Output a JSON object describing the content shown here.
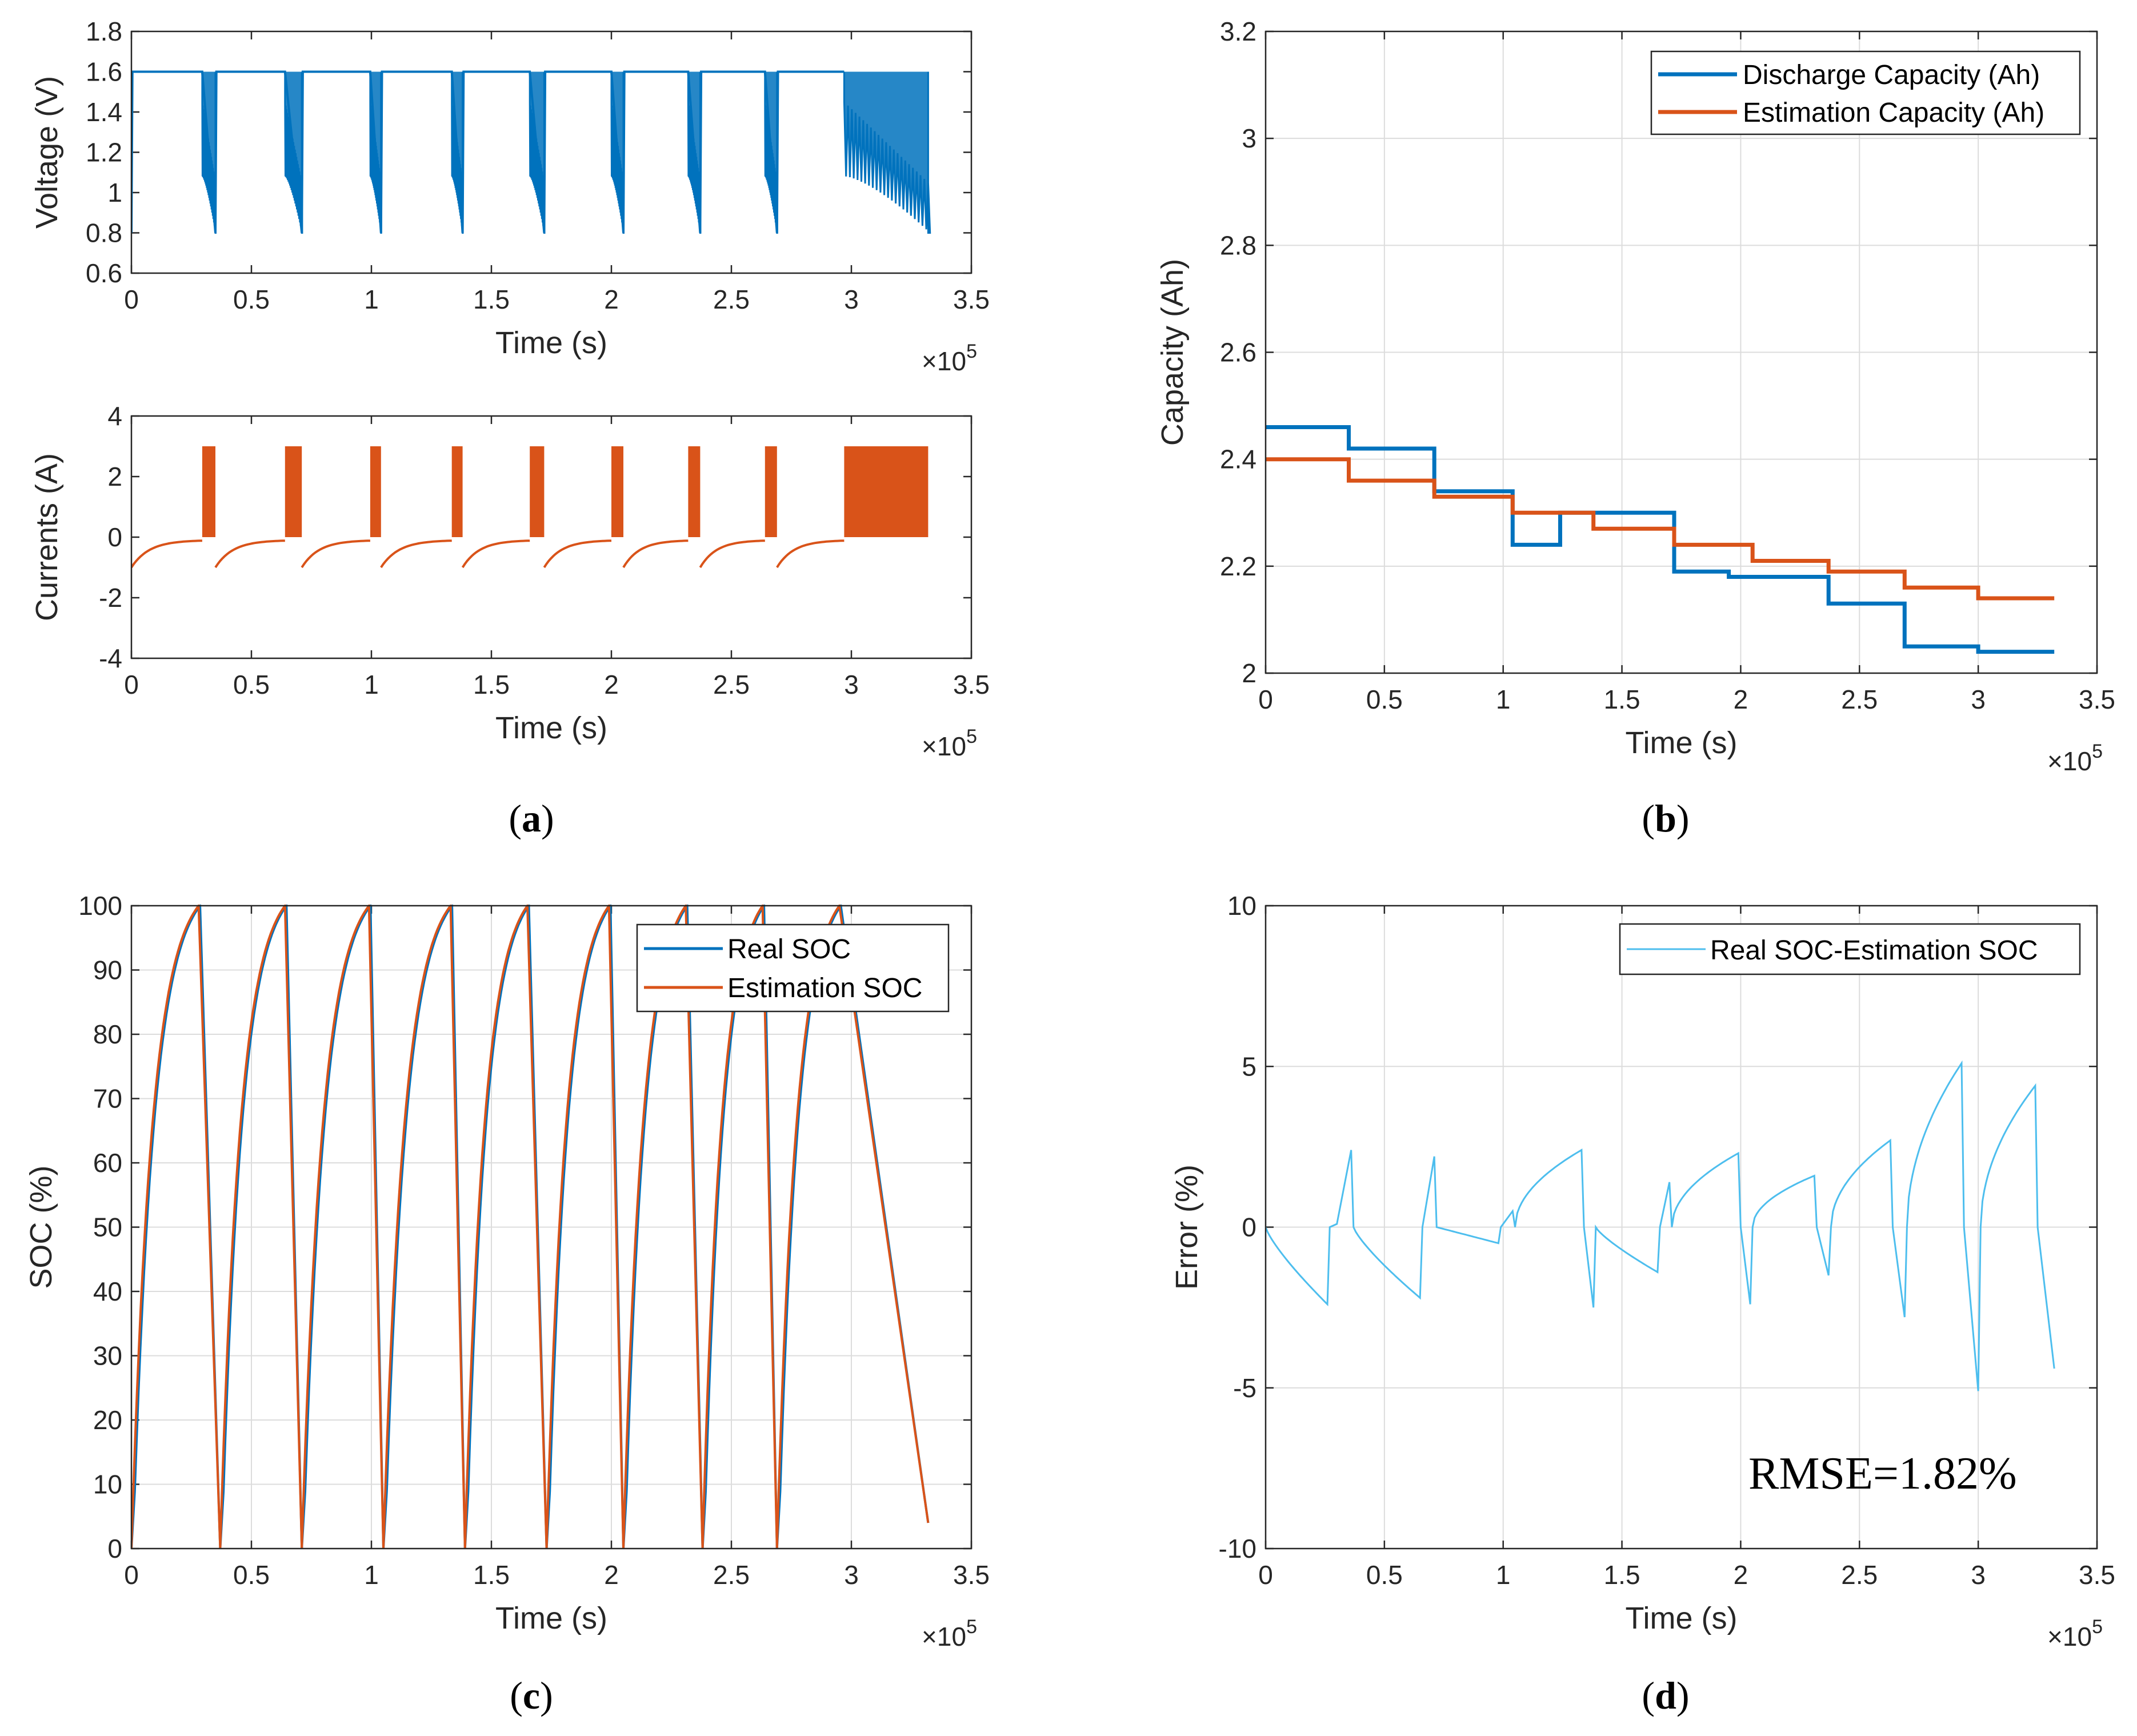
{
  "chart_data": [
    {
      "id": "a-voltage",
      "panel": "a",
      "type": "line",
      "xlabel": "Time (s)",
      "ylabel": "Voltage (V)",
      "x_exponent_label": "×10",
      "x_exponent": "5",
      "xlim": [
        0,
        3.5
      ],
      "ylim": [
        0.6,
        1.8
      ],
      "xticks": [
        "0",
        "0.5",
        "1",
        "1.5",
        "2",
        "2.5",
        "3",
        "3.5"
      ],
      "yticks": [
        "0.6",
        "0.8",
        "1",
        "1.2",
        "1.4",
        "1.6",
        "1.8"
      ],
      "color": "#0072BD",
      "cycle_starts": [
        0,
        0.35,
        0.71,
        1.04,
        1.38,
        1.72,
        2.05,
        2.37,
        2.69
      ],
      "discharge_starts": [
        0.295,
        0.64,
        0.995,
        1.335,
        1.66,
        2.0,
        2.32,
        2.64,
        2.97
      ],
      "cycle_ends": [
        0.35,
        0.71,
        1.04,
        1.38,
        1.72,
        2.05,
        2.37,
        2.69,
        3.32
      ],
      "series": [
        {
          "name": "Voltage",
          "rest_value": 1.6,
          "discharge_start_upper": 1.45,
          "discharge_start_lower": 1.08,
          "end_value": 0.8
        }
      ]
    },
    {
      "id": "a-current",
      "panel": "a",
      "type": "line",
      "xlabel": "Time (s)",
      "ylabel": "Currents (A)",
      "x_exponent_label": "×10",
      "x_exponent": "5",
      "xlim": [
        0,
        3.5
      ],
      "ylim": [
        -4,
        4
      ],
      "xticks": [
        "0",
        "0.5",
        "1",
        "1.5",
        "2",
        "2.5",
        "3",
        "3.5"
      ],
      "yticks": [
        "-4",
        "-2",
        "0",
        "2",
        "4"
      ],
      "color": "#D95319",
      "cycle_starts": [
        0,
        0.35,
        0.71,
        1.04,
        1.38,
        1.72,
        2.05,
        2.37,
        2.69
      ],
      "discharge_starts": [
        0.295,
        0.64,
        0.995,
        1.335,
        1.66,
        2.0,
        2.32,
        2.64,
        2.97
      ],
      "cycle_ends": [
        0.35,
        0.71,
        1.04,
        1.38,
        1.72,
        2.05,
        2.37,
        2.69,
        3.32
      ],
      "series": [
        {
          "name": "Current",
          "charge_start": -1.0,
          "charge_end": -0.1,
          "pulse_high": 3.0,
          "pulse_low": 0.0
        }
      ]
    },
    {
      "id": "b-capacity",
      "panel": "b",
      "type": "line",
      "xlabel": "Time (s)",
      "ylabel": "Capacity (Ah)",
      "x_exponent_label": "×10",
      "x_exponent": "5",
      "xlim": [
        0,
        3.5
      ],
      "ylim": [
        2,
        3.2
      ],
      "xticks": [
        "0",
        "0.5",
        "1",
        "1.5",
        "2",
        "2.5",
        "3",
        "3.5"
      ],
      "yticks": [
        "2",
        "2.2",
        "2.4",
        "2.6",
        "2.8",
        "3",
        "3.2"
      ],
      "legend_position": "top-right",
      "series": [
        {
          "name": "Discharge Capacity (Ah)",
          "color": "#0072BD",
          "x": [
            0,
            0.35,
            0.35,
            0.71,
            0.71,
            1.04,
            1.04,
            1.24,
            1.24,
            1.72,
            1.72,
            1.95,
            1.95,
            2.37,
            2.37,
            2.69,
            2.69,
            3.0,
            3.0,
            3.32
          ],
          "y": [
            2.46,
            2.46,
            2.42,
            2.42,
            2.34,
            2.34,
            2.24,
            2.24,
            2.3,
            2.3,
            2.19,
            2.19,
            2.18,
            2.18,
            2.13,
            2.13,
            2.05,
            2.05,
            2.04,
            2.04
          ]
        },
        {
          "name": "Estimation Capacity (Ah)",
          "color": "#D95319",
          "x": [
            0,
            0.35,
            0.35,
            0.71,
            0.71,
            1.04,
            1.04,
            1.38,
            1.38,
            1.72,
            1.72,
            2.05,
            2.05,
            2.37,
            2.37,
            2.69,
            2.69,
            3.0,
            3.0,
            3.32
          ],
          "y": [
            2.4,
            2.4,
            2.36,
            2.36,
            2.33,
            2.33,
            2.3,
            2.3,
            2.27,
            2.27,
            2.24,
            2.24,
            2.21,
            2.21,
            2.19,
            2.19,
            2.16,
            2.16,
            2.14,
            2.14
          ]
        }
      ]
    },
    {
      "id": "c-soc",
      "panel": "c",
      "type": "line",
      "xlabel": "Time (s)",
      "ylabel": "SOC (%)",
      "x_exponent_label": "×10",
      "x_exponent": "5",
      "xlim": [
        0,
        3.5
      ],
      "ylim": [
        0,
        100
      ],
      "xticks": [
        "0",
        "0.5",
        "1",
        "1.5",
        "2",
        "2.5",
        "3",
        "3.5"
      ],
      "yticks": [
        "0",
        "10",
        "20",
        "30",
        "40",
        "50",
        "60",
        "70",
        "80",
        "90",
        "100"
      ],
      "legend_position": "top-right",
      "cycle_starts": [
        0,
        0.37,
        0.71,
        1.05,
        1.39,
        1.73,
        2.05,
        2.38,
        2.69
      ],
      "peaks": [
        0.28,
        0.64,
        0.99,
        1.33,
        1.65,
        1.99,
        2.31,
        2.63,
        2.95
      ],
      "cycle_ends": [
        0.37,
        0.71,
        1.05,
        1.39,
        1.73,
        2.05,
        2.38,
        2.69,
        3.32
      ],
      "series": [
        {
          "name": "Real SOC",
          "color": "#0072BD"
        },
        {
          "name": "Estimation SOC",
          "color": "#D95319"
        }
      ]
    },
    {
      "id": "d-error",
      "panel": "d",
      "type": "line",
      "xlabel": "Time (s)",
      "ylabel": "Error (%)",
      "x_exponent_label": "×10",
      "x_exponent": "5",
      "xlim": [
        0,
        3.5
      ],
      "ylim": [
        -10,
        10
      ],
      "xticks": [
        "0",
        "0.5",
        "1",
        "1.5",
        "2",
        "2.5",
        "3",
        "3.5"
      ],
      "yticks": [
        "-10",
        "-5",
        "0",
        "5",
        "10"
      ],
      "legend_position": "top-right",
      "annotation": "RMSE=1.82%",
      "series": [
        {
          "name": "Real SOC-Estimation SOC",
          "color": "#4DBEEE",
          "segments": [
            {
              "x0": 0,
              "y0": 0,
              "x1": 0.26,
              "y1": -2.4,
              "curve": "decay",
              "tail": [
                [
                  0.27,
                  0
                ],
                [
                  0.3,
                  0.1
                ],
                [
                  0.36,
                  2.4
                ],
                [
                  0.37,
                  0
                ]
              ]
            },
            {
              "x0": 0.37,
              "y0": 0,
              "x1": 0.65,
              "y1": -2.2,
              "curve": "decay",
              "tail": [
                [
                  0.66,
                  0
                ],
                [
                  0.71,
                  2.2
                ],
                [
                  0.72,
                  0
                ]
              ]
            },
            {
              "x0": 0.72,
              "y0": 0,
              "x1": 0.98,
              "y1": -0.5,
              "curve": "linear",
              "tail": [
                [
                  0.99,
                  0
                ],
                [
                  1.04,
                  0.5
                ],
                [
                  1.05,
                  0
                ]
              ]
            },
            {
              "x0": 1.05,
              "y0": 0,
              "x1": 1.33,
              "y1": 2.4,
              "curve": "rise",
              "tail": [
                [
                  1.34,
                  0
                ],
                [
                  1.38,
                  -2.5
                ],
                [
                  1.39,
                  0
                ]
              ]
            },
            {
              "x0": 1.39,
              "y0": 0,
              "x1": 1.65,
              "y1": -1.4,
              "curve": "decay",
              "tail": [
                [
                  1.66,
                  0
                ],
                [
                  1.7,
                  1.4
                ],
                [
                  1.71,
                  0
                ]
              ]
            },
            {
              "x0": 1.71,
              "y0": 0,
              "x1": 1.99,
              "y1": 2.3,
              "curve": "rise",
              "tail": [
                [
                  2.0,
                  0
                ],
                [
                  2.04,
                  -2.4
                ],
                [
                  2.05,
                  0
                ]
              ]
            },
            {
              "x0": 2.05,
              "y0": 0,
              "x1": 2.31,
              "y1": 1.6,
              "curve": "rise",
              "tail": [
                [
                  2.32,
                  0
                ],
                [
                  2.37,
                  -1.5
                ],
                [
                  2.38,
                  0
                ]
              ]
            },
            {
              "x0": 2.38,
              "y0": 0,
              "x1": 2.63,
              "y1": 2.7,
              "curve": "rise",
              "tail": [
                [
                  2.64,
                  0
                ],
                [
                  2.69,
                  -2.8
                ],
                [
                  2.7,
                  0
                ]
              ]
            },
            {
              "x0": 2.7,
              "y0": 0,
              "x1": 2.93,
              "y1": 5.1,
              "curve": "rise",
              "tail": [
                [
                  2.94,
                  0
                ],
                [
                  3.0,
                  -5.1
                ],
                [
                  3.01,
                  0
                ]
              ]
            },
            {
              "x0": 3.01,
              "y0": 0,
              "x1": 3.24,
              "y1": 4.4,
              "curve": "rise",
              "tail": [
                [
                  3.25,
                  0
                ],
                [
                  3.32,
                  -4.4
                ]
              ]
            }
          ]
        }
      ]
    }
  ],
  "captions": {
    "a": "a",
    "b": "b",
    "c": "c",
    "d": "d"
  }
}
